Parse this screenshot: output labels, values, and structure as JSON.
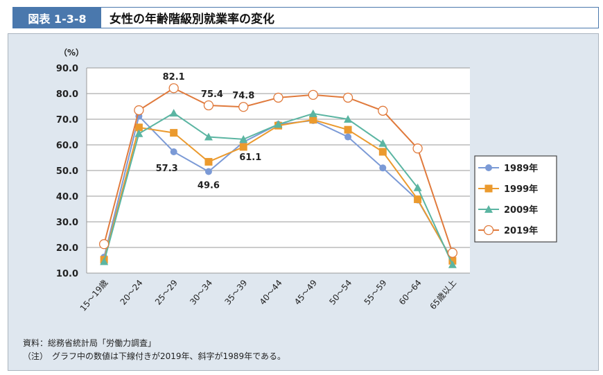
{
  "header": {
    "figure_number": "図表 1-3-8",
    "title": "女性の年齢階級別就業率の変化"
  },
  "chart_data": {
    "type": "line",
    "title": "女性の年齢階級別就業率の変化",
    "ylabel": "（%）",
    "ylim": [
      10,
      90
    ],
    "yticks": [
      "10.0",
      "20.0",
      "30.0",
      "40.0",
      "50.0",
      "60.0",
      "70.0",
      "80.0",
      "90.0"
    ],
    "grid": true,
    "legend": "right",
    "categories": [
      "15～19歳",
      "20～24",
      "25～29",
      "30～34",
      "35～39",
      "40～44",
      "45～49",
      "50～54",
      "55～59",
      "60～64",
      "65歳以上"
    ],
    "series": [
      {
        "name": "1989年",
        "color": "#7b9ad6",
        "marker": "circle",
        "values": [
          16.2,
          71.2,
          57.3,
          49.6,
          61.1,
          68.0,
          69.5,
          63.1,
          51.0,
          38.5,
          15.0
        ]
      },
      {
        "name": "1999年",
        "color": "#eb9a2e",
        "marker": "square",
        "values": [
          15.2,
          66.8,
          64.7,
          53.4,
          59.2,
          67.5,
          69.8,
          65.9,
          57.3,
          38.8,
          14.8
        ]
      },
      {
        "name": "2009年",
        "color": "#5bb5a2",
        "marker": "triangle",
        "values": [
          14.5,
          64.4,
          72.4,
          63.1,
          62.2,
          68.0,
          72.2,
          70.0,
          60.6,
          43.3,
          13.3
        ]
      },
      {
        "name": "2019年",
        "color": "#e07a3c",
        "marker": "open-circle",
        "values": [
          21.3,
          73.5,
          82.1,
          75.4,
          74.8,
          78.4,
          79.5,
          78.4,
          73.3,
          58.6,
          17.9
        ]
      }
    ],
    "annotations": [
      {
        "series": "2019年",
        "category": "25～29",
        "text": "82.1"
      },
      {
        "series": "2019年",
        "category": "30～34",
        "text": "75.4"
      },
      {
        "series": "2019年",
        "category": "35～39",
        "text": "74.8"
      },
      {
        "series": "1989年",
        "category": "25～29",
        "text": "57.3"
      },
      {
        "series": "1989年",
        "category": "30～34",
        "text": "49.6"
      },
      {
        "series": "1989年",
        "category": "35～39",
        "text": "61.1"
      }
    ]
  },
  "notes": {
    "source": "資料：総務省統計局「労働力調査」",
    "note": "（注）　グラフ中の数値は下線付きが2019年、斜字が1989年である。"
  }
}
